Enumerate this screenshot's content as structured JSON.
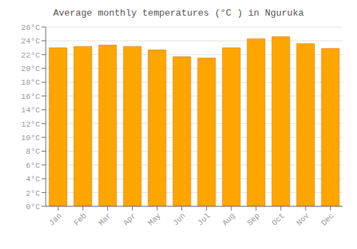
{
  "chart_data": {
    "type": "bar",
    "title": "Average monthly temperatures (°C ) in Nguruka",
    "categories": [
      "Jan",
      "Feb",
      "Mar",
      "Apr",
      "May",
      "Jun",
      "Jul",
      "Aug",
      "Sep",
      "Oct",
      "Nov",
      "Dec"
    ],
    "values": [
      23.0,
      23.2,
      23.4,
      23.2,
      22.7,
      21.7,
      21.5,
      23.0,
      24.3,
      24.6,
      23.6,
      22.9
    ],
    "color": "#FFA500",
    "ylim": [
      0,
      26
    ],
    "yticks": [
      {
        "value": 0,
        "label": "0°C"
      },
      {
        "value": 2,
        "label": "2°C"
      },
      {
        "value": 4,
        "label": "4°C"
      },
      {
        "value": 6,
        "label": "6°C"
      },
      {
        "value": 8,
        "label": "8°C"
      },
      {
        "value": 10,
        "label": "10°C"
      },
      {
        "value": 12,
        "label": "12°C"
      },
      {
        "value": 14,
        "label": "14°C"
      },
      {
        "value": 16,
        "label": "16°C"
      },
      {
        "value": 18,
        "label": "18°C"
      },
      {
        "value": 20,
        "label": "20°C"
      },
      {
        "value": 22,
        "label": "22°C"
      },
      {
        "value": 24,
        "label": "24°C"
      },
      {
        "value": 26,
        "label": "26°C"
      }
    ],
    "grid": true
  }
}
